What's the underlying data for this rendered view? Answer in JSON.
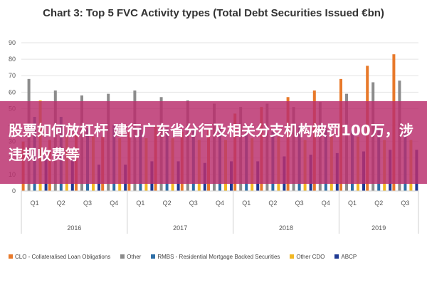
{
  "chart_data": {
    "type": "bar",
    "title": "Chart 3: Top 5 FVC Activity types (Total Debt Securities Issued €bn)",
    "xlabel": "",
    "ylabel": "",
    "ylim": [
      0,
      90
    ],
    "yticks": [
      "0",
      "10",
      "20",
      "30",
      "40",
      "50",
      "60",
      "70",
      "80",
      "90"
    ],
    "grid": true,
    "legend_position": "bottom",
    "categories": [
      "Q1",
      "Q2",
      "Q3",
      "Q4",
      "Q1",
      "Q2",
      "Q3",
      "Q4",
      "Q1",
      "Q2",
      "Q3",
      "Q4",
      "Q1",
      "Q2",
      "Q3"
    ],
    "year_groups": [
      {
        "label": "2016",
        "count": 4
      },
      {
        "label": "2017",
        "count": 4
      },
      {
        "label": "2018",
        "count": 4
      },
      {
        "label": "2019",
        "count": 3
      }
    ],
    "series": [
      {
        "name": "CLO - Collateralised Loan Obligations",
        "color": "#E8792A",
        "values": [
          30,
          31,
          34,
          33,
          36,
          40,
          36,
          37,
          47,
          51,
          57,
          61,
          68,
          76,
          83
        ]
      },
      {
        "name": "Other",
        "color": "#8C8C8C",
        "values": [
          68,
          61,
          58,
          59,
          61,
          57,
          55,
          53,
          51,
          53,
          51,
          54,
          59,
          66,
          67
        ]
      },
      {
        "name": "RMBS - Residential Mortgage Backed Securities",
        "color": "#2E6FA7",
        "values": [
          45,
          45,
          38,
          40,
          39,
          38,
          37,
          38,
          36,
          36,
          40,
          38,
          37,
          37,
          36
        ]
      },
      {
        "name": "Other CDO",
        "color": "#F2B824",
        "values": [
          55,
          33,
          33,
          32,
          32,
          32,
          31,
          31,
          32,
          33,
          31,
          33,
          33,
          31,
          31
        ]
      },
      {
        "name": "ABCP",
        "color": "#1F3A93",
        "values": [
          21,
          19,
          16,
          16,
          18,
          18,
          17,
          18,
          18,
          21,
          22,
          23,
          24,
          25,
          25
        ]
      }
    ]
  },
  "overlay": {
    "banner_text": "股票如何放杠杆 建行广东省分行及相关分支机构被罚100万，涉违规收费等"
  }
}
